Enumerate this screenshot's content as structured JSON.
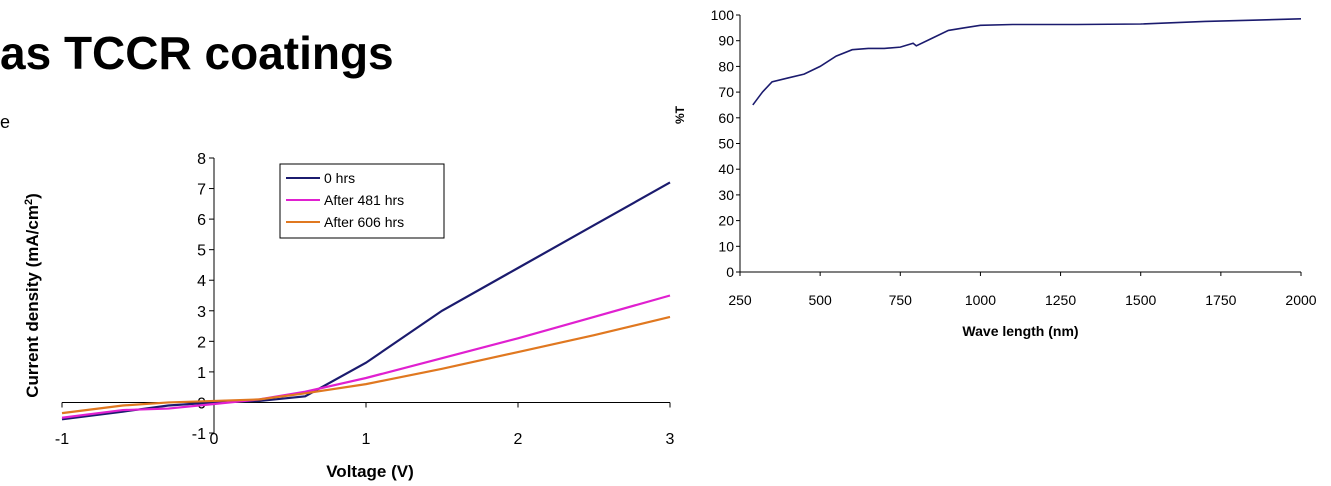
{
  "slide": {
    "title": "as TCCR coatings",
    "stray_char": "e"
  },
  "chart_data": [
    {
      "type": "line",
      "title": "",
      "xlabel": "Voltage (V)",
      "ylabel_main": "Current density (mA/cm",
      "ylabel_sup": "2",
      "ylabel_tail": ")",
      "xlim": [
        -1,
        3
      ],
      "ylim": [
        -1,
        8
      ],
      "x_ticks": [
        -1,
        0,
        1,
        2,
        3
      ],
      "x_tick_labels": [
        "-1",
        "0",
        "1",
        "2",
        "3"
      ],
      "y_ticks": [
        -1,
        0,
        1,
        2,
        3,
        4,
        5,
        6,
        7,
        8
      ],
      "y_tick_labels": [
        "-1",
        "0",
        "1",
        "2",
        "3",
        "4",
        "5",
        "6",
        "7",
        "8"
      ],
      "grid": false,
      "legend_position": "top-center",
      "series": [
        {
          "name": "0 hrs",
          "color": "#1b1b6e",
          "x": [
            -1,
            -0.6,
            -0.3,
            0,
            0.3,
            0.6,
            1,
            1.5,
            2,
            2.5,
            3
          ],
          "y": [
            -0.55,
            -0.3,
            -0.1,
            0.0,
            0.05,
            0.2,
            1.3,
            3.0,
            4.4,
            5.8,
            7.2
          ]
        },
        {
          "name": "After 481 hrs",
          "color": "#e020d0",
          "x": [
            -1,
            -0.6,
            -0.3,
            0,
            0.3,
            0.6,
            1,
            1.5,
            2,
            2.5,
            3
          ],
          "y": [
            -0.5,
            -0.25,
            -0.2,
            -0.05,
            0.1,
            0.35,
            0.8,
            1.45,
            2.1,
            2.8,
            3.5
          ]
        },
        {
          "name": "After 606 hrs",
          "color": "#e07820",
          "x": [
            -1,
            -0.6,
            -0.3,
            0,
            0.3,
            0.6,
            1,
            1.5,
            2,
            2.5,
            3
          ],
          "y": [
            -0.35,
            -0.1,
            0.0,
            0.05,
            0.1,
            0.3,
            0.6,
            1.1,
            1.65,
            2.2,
            2.8
          ]
        }
      ]
    },
    {
      "type": "line",
      "title": "",
      "xlabel": "Wave length (nm)",
      "ylabel": "%T",
      "xlim": [
        250,
        2000
      ],
      "ylim": [
        0,
        100
      ],
      "x_ticks": [
        250,
        500,
        750,
        1000,
        1250,
        1500,
        1750,
        2000
      ],
      "x_tick_labels": [
        "250",
        "500",
        "750",
        "1000",
        "1250",
        "1500",
        "1750",
        "2000"
      ],
      "y_ticks": [
        0,
        10,
        20,
        30,
        40,
        50,
        60,
        70,
        80,
        90,
        100
      ],
      "y_tick_labels": [
        "0",
        "10",
        "20",
        "30",
        "40",
        "50",
        "60",
        "70",
        "80",
        "90",
        "100"
      ],
      "grid": false,
      "series": [
        {
          "color": "#1b1b6e",
          "x": [
            290,
            320,
            350,
            400,
            450,
            500,
            550,
            600,
            650,
            700,
            750,
            790,
            800,
            850,
            900,
            950,
            1000,
            1100,
            1200,
            1300,
            1500,
            1700,
            1850,
            2000
          ],
          "y": [
            65,
            70,
            74,
            75.5,
            77,
            80,
            84,
            86.5,
            87,
            87,
            87.5,
            89,
            88,
            91,
            94,
            95,
            96,
            96.3,
            96.3,
            96.3,
            96.5,
            97.5,
            98,
            98.5
          ]
        }
      ]
    }
  ]
}
